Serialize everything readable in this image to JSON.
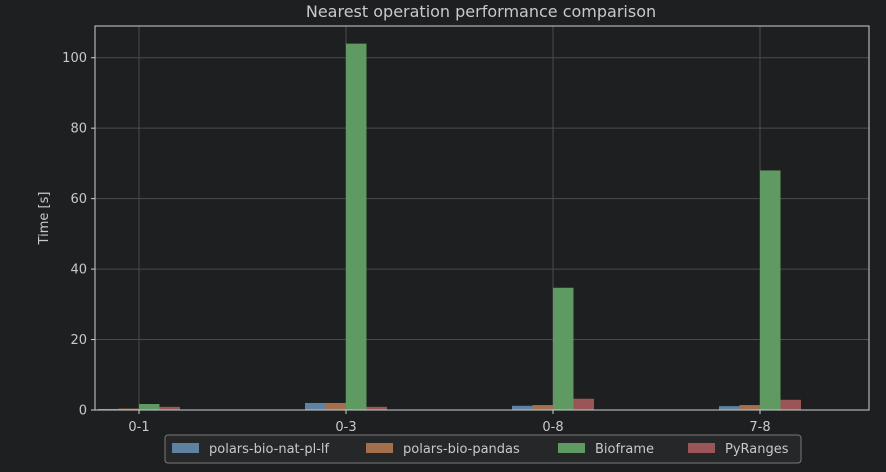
{
  "chart_data": {
    "type": "bar",
    "title": "Nearest operation performance comparison",
    "xlabel": "",
    "ylabel": "Time [s]",
    "categories": [
      "0-1",
      "0-3",
      "0-8",
      "7-8"
    ],
    "ylim": [
      0,
      109
    ],
    "yticks": [
      0,
      20,
      40,
      60,
      80,
      100
    ],
    "grid": true,
    "legend_position": "bottom-center",
    "series": [
      {
        "name": "polars-bio-nat-pl-lf",
        "color": "#5f82a3",
        "values": [
          0.3,
          2.0,
          1.2,
          1.1
        ]
      },
      {
        "name": "polars-bio-pandas",
        "color": "#a3704d",
        "values": [
          0.4,
          2.0,
          1.4,
          1.4
        ]
      },
      {
        "name": "Bioframe",
        "color": "#5e9a61",
        "values": [
          1.7,
          104.0,
          34.7,
          68.0
        ]
      },
      {
        "name": "PyRanges",
        "color": "#9a5656",
        "values": [
          0.9,
          0.9,
          3.2,
          2.9
        ]
      }
    ]
  }
}
